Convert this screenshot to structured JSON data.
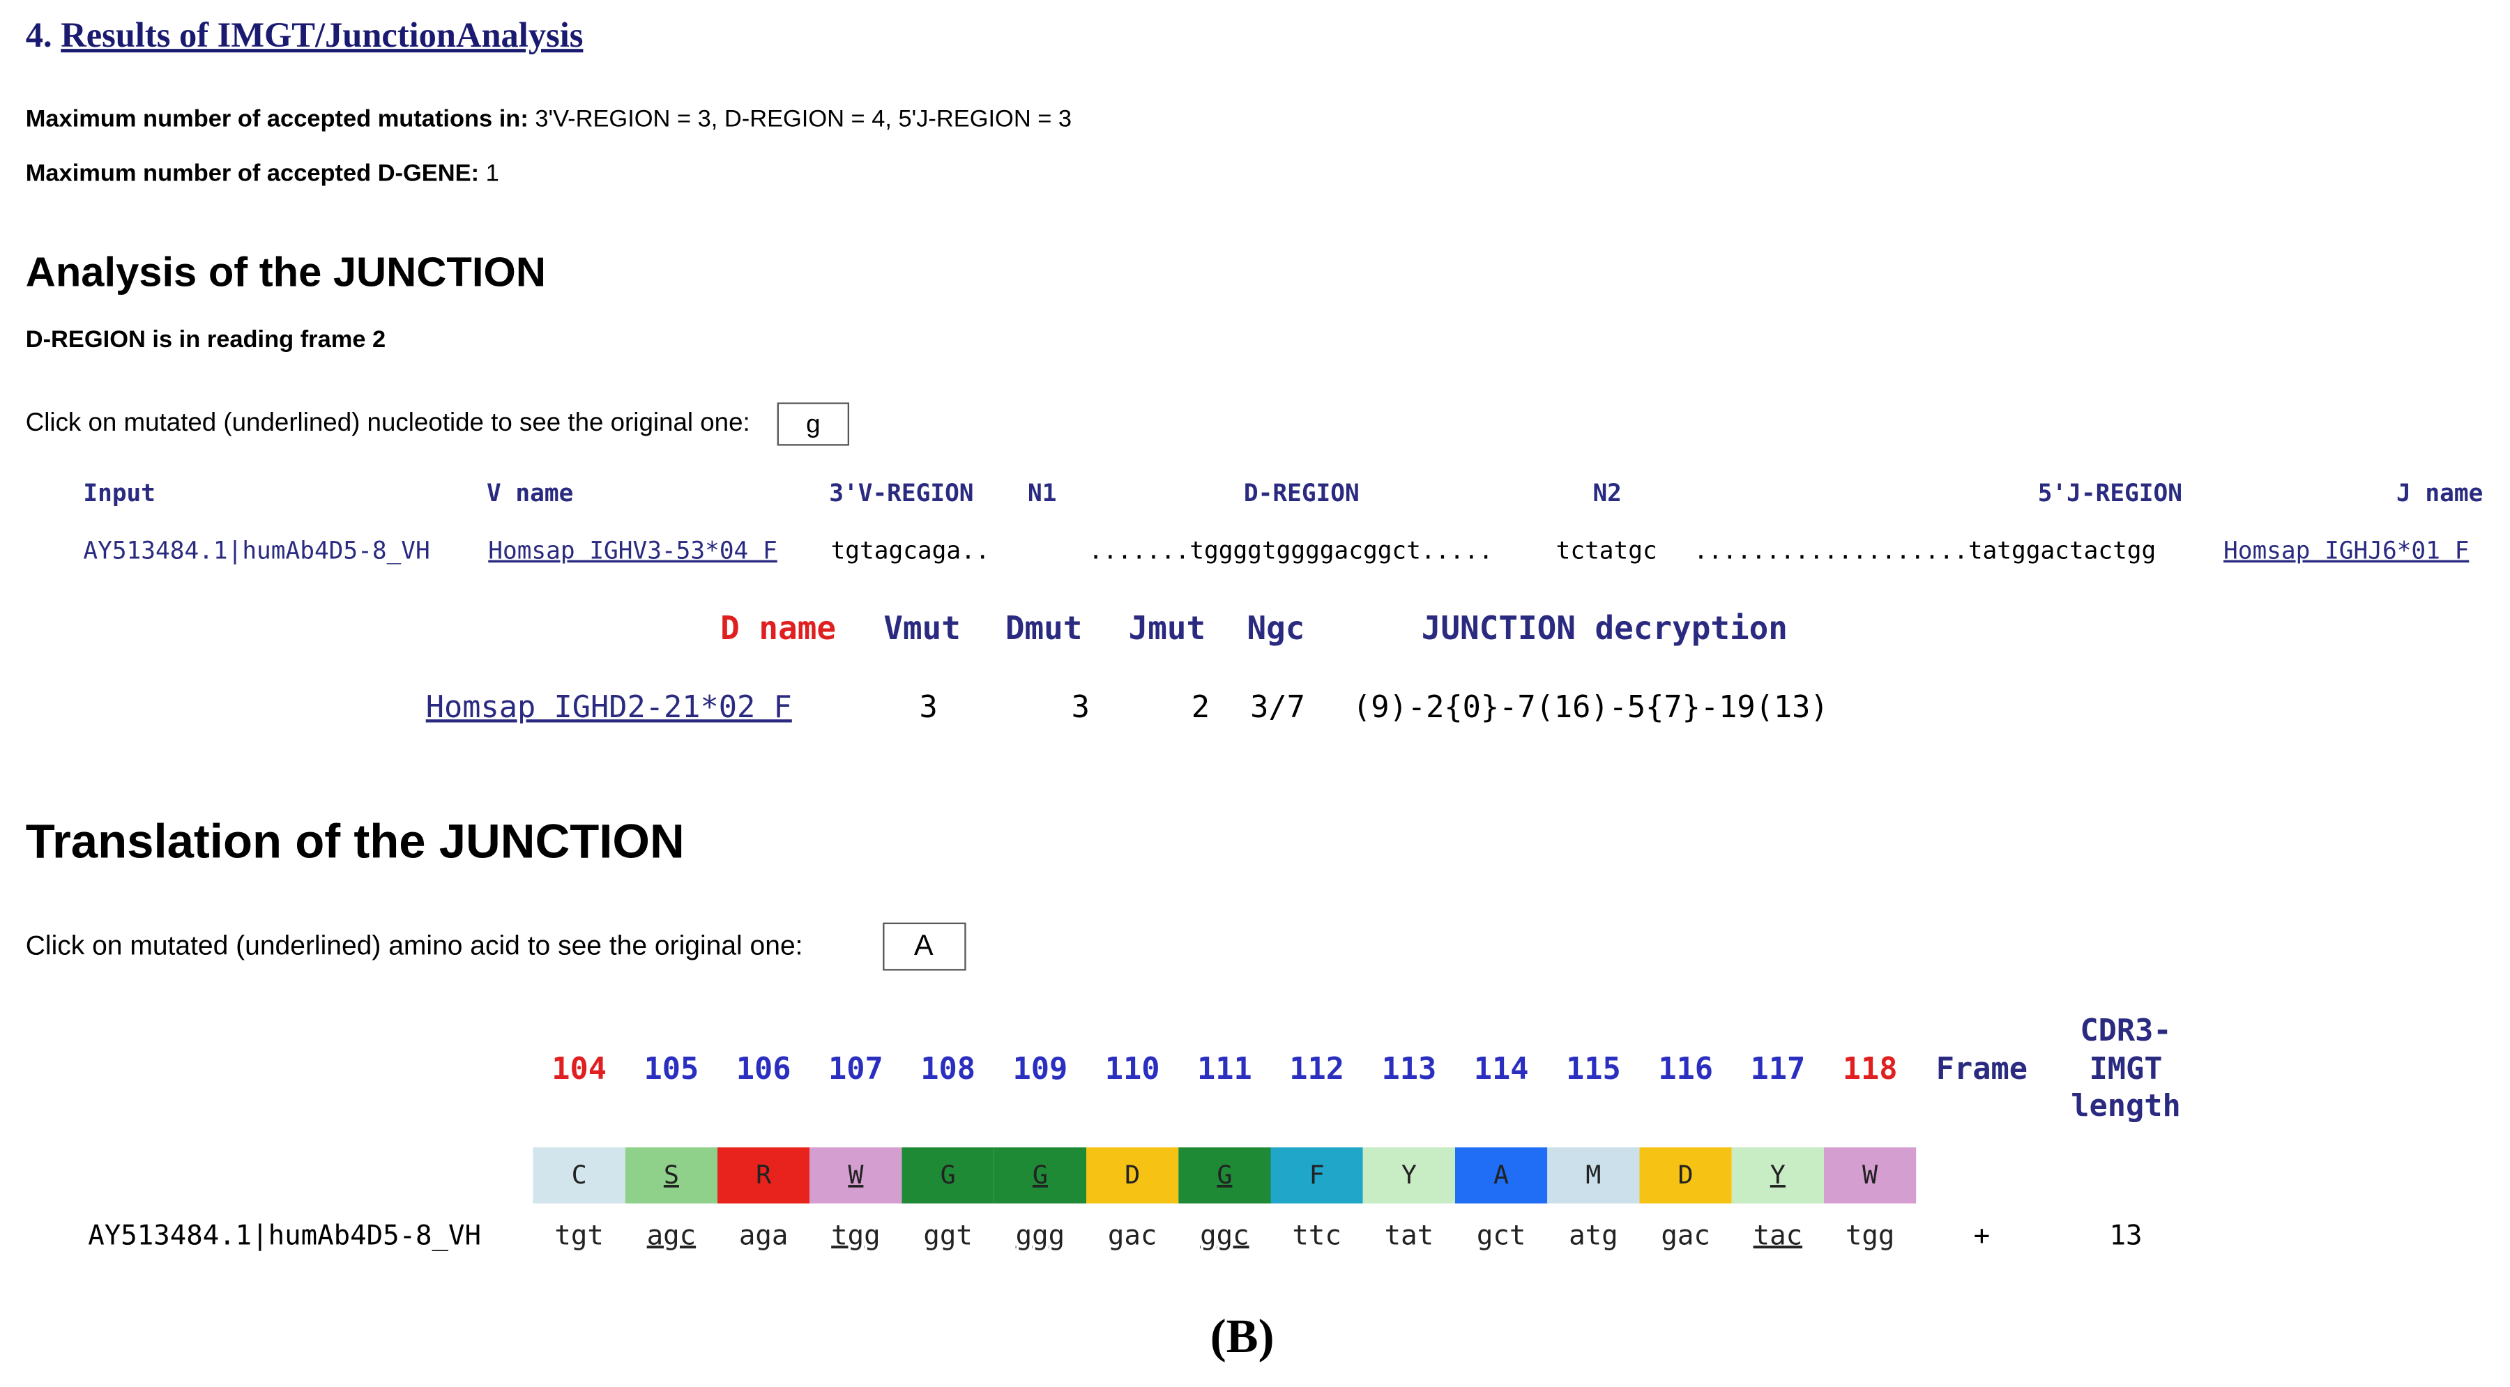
{
  "heading": {
    "number": "4.",
    "link": "Results of IMGT/JunctionAnalysis"
  },
  "params": [
    {
      "label": "Maximum number of accepted mutations in:",
      "value": "3'V-REGION = 3, D-REGION = 4, 5'J-REGION = 3"
    },
    {
      "label": "Maximum number of accepted D-GENE:",
      "value": "1"
    }
  ],
  "analysis": {
    "title": "Analysis of the JUNCTION",
    "frame_note": "D-REGION is in reading frame 2",
    "prompt": "Click on mutated (underlined) nucleotide to see the original one:",
    "prompt_box": "g",
    "table1": {
      "headers": [
        "Input",
        "V name",
        "3'V-REGION",
        "N1",
        "D-REGION",
        "N2",
        "5'J-REGION",
        "J name"
      ],
      "row": {
        "input": "AY513484.1|humAb4D5-8_VH",
        "v_name": "Homsap IGHV3-53*04 F",
        "v_region": "tgtagcaga..",
        "d_region": ".......tggggtggggacggct.....",
        "n2": "tctatgc",
        "j_region": "...................tatggactactgg",
        "j_name": "Homsap IGHJ6*01 F"
      }
    },
    "table2": {
      "headers": [
        "D name",
        "Vmut",
        "Dmut",
        "Jmut",
        "Ngc",
        "JUNCTION decryption"
      ],
      "row": {
        "d_name": "Homsap IGHD2-21*02 F",
        "vmut": "3",
        "dmut": "3",
        "jmut": "2",
        "ngc": "3/7",
        "decryption": "(9)-2{0}-7(16)-5{7}-19(13)"
      }
    }
  },
  "translation": {
    "title": "Translation of the JUNCTION",
    "prompt": "Click on mutated (underlined) amino acid to see the original one:",
    "prompt_box": "A",
    "input": "AY513484.1|humAb4D5-8_VH",
    "columns": [
      {
        "pos": 104,
        "aa": "C",
        "codon": "tgt",
        "fill": "#d3e5ec",
        "mutated": false
      },
      {
        "pos": 105,
        "aa": "S",
        "codon": "agc",
        "fill": "#8fd18a",
        "mutated": true
      },
      {
        "pos": 106,
        "aa": "R",
        "codon": "aga",
        "fill": "#e8231d",
        "mutated": false
      },
      {
        "pos": 107,
        "aa": "W",
        "codon": "tgg",
        "fill": "#d49fd0",
        "mutated": true
      },
      {
        "pos": 108,
        "aa": "G",
        "codon": "ggt",
        "fill": "#1f8a35",
        "mutated": false
      },
      {
        "pos": 109,
        "aa": "G",
        "codon": "ggg",
        "fill": "#1f8a35",
        "mutated": true
      },
      {
        "pos": 110,
        "aa": "D",
        "codon": "gac",
        "fill": "#f6c315",
        "mutated": false
      },
      {
        "pos": 111,
        "aa": "G",
        "codon": "ggc",
        "fill": "#1f8a35",
        "mutated": true
      },
      {
        "pos": 112,
        "aa": "F",
        "codon": "ttc",
        "fill": "#1fa6c9",
        "mutated": false
      },
      {
        "pos": 113,
        "aa": "Y",
        "codon": "tat",
        "fill": "#c8ecc4",
        "mutated": false
      },
      {
        "pos": 114,
        "aa": "A",
        "codon": "gct",
        "fill": "#1f6ef5",
        "mutated": false
      },
      {
        "pos": 115,
        "aa": "M",
        "codon": "atg",
        "fill": "#cbe0ea",
        "mutated": false
      },
      {
        "pos": 116,
        "aa": "D",
        "codon": "gac",
        "fill": "#f6c315",
        "mutated": false
      },
      {
        "pos": 117,
        "aa": "Y",
        "codon": "tac",
        "fill": "#c8ecc4",
        "mutated": true
      },
      {
        "pos": 118,
        "aa": "W",
        "codon": "tgg",
        "fill": "#d49fd0",
        "mutated": false
      }
    ],
    "frame_header": "Frame",
    "frame_value": "+",
    "length_header": [
      "CDR3-",
      "IMGT",
      "length"
    ],
    "length_value": "13"
  },
  "caption": "(B)"
}
